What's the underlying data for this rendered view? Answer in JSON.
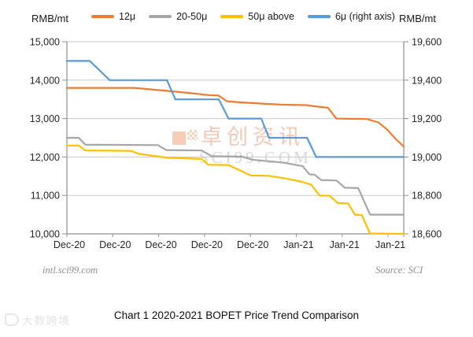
{
  "caption": "Chart 1 2020-2021 BOPET Price Trend Comparison",
  "footer": {
    "left": "intl.sci99.com",
    "right": "Source: SCI"
  },
  "watermark": {
    "cn": "卓创资讯",
    "en": "SCI99.COM"
  },
  "corner_watermark": "大数跨境",
  "colors": {
    "gridline": "#c9c9c9",
    "axis": "#8f8f8f",
    "tick_text": "#262626"
  },
  "chart_data": {
    "type": "line",
    "title": "Chart 1 2020-2021 BOPET Price Trend Comparison",
    "grid": true,
    "legend_position": "top",
    "x_tick_labels": [
      "Dec-20",
      "Dec-20",
      "Dec-20",
      "Dec-20",
      "Dec-20",
      "Jan-21",
      "Jan-21",
      "Jan-21"
    ],
    "left_axis": {
      "label": "RMB/mt",
      "min": 10000,
      "max": 15000,
      "ticks": [
        {
          "label": "15,000",
          "value": 15000
        },
        {
          "label": "14,000",
          "value": 14000
        },
        {
          "label": "13,000",
          "value": 13000
        },
        {
          "label": "12,000",
          "value": 12000
        },
        {
          "label": "11,000",
          "value": 11000
        },
        {
          "label": "10,000",
          "value": 10000
        }
      ]
    },
    "right_axis": {
      "label": "RMB/mt",
      "min": 18600,
      "max": 19600,
      "ticks": [
        {
          "label": "19,600",
          "value": 19600
        },
        {
          "label": "19,400",
          "value": 19400
        },
        {
          "label": "19,200",
          "value": 19200
        },
        {
          "label": "19,000",
          "value": 19000
        },
        {
          "label": "18,800",
          "value": 18800
        },
        {
          "label": "18,600",
          "value": 18600
        }
      ]
    },
    "series": [
      {
        "name": "12μ",
        "axis": "left",
        "color": "#ED7D31",
        "points": [
          [
            0,
            13800
          ],
          [
            0.2,
            13800
          ],
          [
            0.3,
            13720
          ],
          [
            0.37,
            13660
          ],
          [
            0.42,
            13610
          ],
          [
            0.45,
            13600
          ],
          [
            0.475,
            13450
          ],
          [
            0.52,
            13420
          ],
          [
            0.58,
            13390
          ],
          [
            0.64,
            13360
          ],
          [
            0.71,
            13350
          ],
          [
            0.745,
            13310
          ],
          [
            0.775,
            13280
          ],
          [
            0.8,
            13000
          ],
          [
            0.89,
            12990
          ],
          [
            0.925,
            12900
          ],
          [
            0.95,
            12720
          ],
          [
            0.975,
            12480
          ],
          [
            1,
            12270
          ]
        ]
      },
      {
        "name": "20-50μ",
        "axis": "left",
        "color": "#A6A6A6",
        "points": [
          [
            0,
            12500
          ],
          [
            0.035,
            12500
          ],
          [
            0.055,
            12320
          ],
          [
            0.27,
            12310
          ],
          [
            0.295,
            12180
          ],
          [
            0.4,
            12170
          ],
          [
            0.43,
            12020
          ],
          [
            0.52,
            12010
          ],
          [
            0.55,
            11930
          ],
          [
            0.645,
            11850
          ],
          [
            0.7,
            11760
          ],
          [
            0.72,
            11550
          ],
          [
            0.735,
            11540
          ],
          [
            0.755,
            11400
          ],
          [
            0.8,
            11390
          ],
          [
            0.825,
            11200
          ],
          [
            0.865,
            11190
          ],
          [
            0.9,
            10500
          ],
          [
            1,
            10500
          ]
        ]
      },
      {
        "name": "50μ above",
        "axis": "left",
        "color": "#FFC000",
        "points": [
          [
            0,
            12300
          ],
          [
            0.035,
            12300
          ],
          [
            0.055,
            12170
          ],
          [
            0.19,
            12160
          ],
          [
            0.215,
            12080
          ],
          [
            0.3,
            11980
          ],
          [
            0.4,
            11950
          ],
          [
            0.42,
            11800
          ],
          [
            0.48,
            11790
          ],
          [
            0.545,
            11520
          ],
          [
            0.6,
            11510
          ],
          [
            0.65,
            11440
          ],
          [
            0.695,
            11360
          ],
          [
            0.725,
            11280
          ],
          [
            0.75,
            11000
          ],
          [
            0.78,
            10990
          ],
          [
            0.805,
            10800
          ],
          [
            0.835,
            10790
          ],
          [
            0.855,
            10500
          ],
          [
            0.875,
            10490
          ],
          [
            0.9,
            10010
          ],
          [
            1,
            10000
          ]
        ]
      },
      {
        "name": "6μ (right axis)",
        "axis": "right",
        "color": "#5B9BD5",
        "points": [
          [
            0,
            19500
          ],
          [
            0.068,
            19500
          ],
          [
            0.127,
            19400
          ],
          [
            0.297,
            19400
          ],
          [
            0.322,
            19300
          ],
          [
            0.451,
            19300
          ],
          [
            0.48,
            19200
          ],
          [
            0.577,
            19200
          ],
          [
            0.6,
            19100
          ],
          [
            0.713,
            19100
          ],
          [
            0.74,
            19000
          ],
          [
            1,
            19000
          ]
        ]
      }
    ]
  }
}
